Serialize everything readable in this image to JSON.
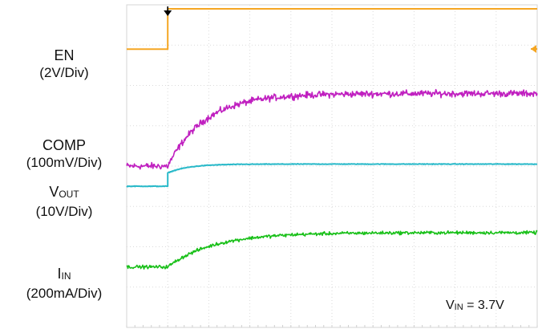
{
  "labels": {
    "en": {
      "name": "EN",
      "scale": "(2V/Div)"
    },
    "comp": {
      "name": "COMP",
      "scale": "(100mV/Div)"
    },
    "vout": {
      "main": "V",
      "sub": "OUT",
      "scale": "(10V/Div)"
    },
    "iin": {
      "main": "I",
      "sub": "IN",
      "scale": "(200mA/Div)"
    }
  },
  "annotation": {
    "main": "V",
    "sub": "IN",
    "rest": " = 3.7V"
  },
  "chart_data": {
    "type": "line",
    "x": {
      "divisions": 10
    },
    "y": {
      "divisions": 8
    },
    "grid": true,
    "trigger_marker": {
      "x_div": 1.0
    },
    "series": [
      {
        "name": "EN",
        "color": "#f5a623",
        "baseline_div": 6.9,
        "final_div": 7.9,
        "step_div": 1.0,
        "rise": "step",
        "noise_div": 0.0
      },
      {
        "name": "COMP",
        "color": "#c020c0",
        "baseline_div": 4.0,
        "final_div": 5.8,
        "step_div": 1.0,
        "rise": "exp",
        "tau_div": 0.9,
        "noise_div": 0.05
      },
      {
        "name": "VOUT",
        "color": "#29b9c9",
        "baseline_div": 3.5,
        "final_div": 4.05,
        "step_div": 1.0,
        "rise": "jump_then_exp",
        "tau_div": 0.5,
        "noise_div": 0.005
      },
      {
        "name": "IIN",
        "color": "#19c019",
        "baseline_div": 1.5,
        "final_div": 2.35,
        "step_div": 1.0,
        "rise": "exp",
        "tau_div": 1.1,
        "noise_div": 0.025
      }
    ],
    "end_marker": {
      "series": "EN",
      "color": "#f5a623"
    }
  }
}
